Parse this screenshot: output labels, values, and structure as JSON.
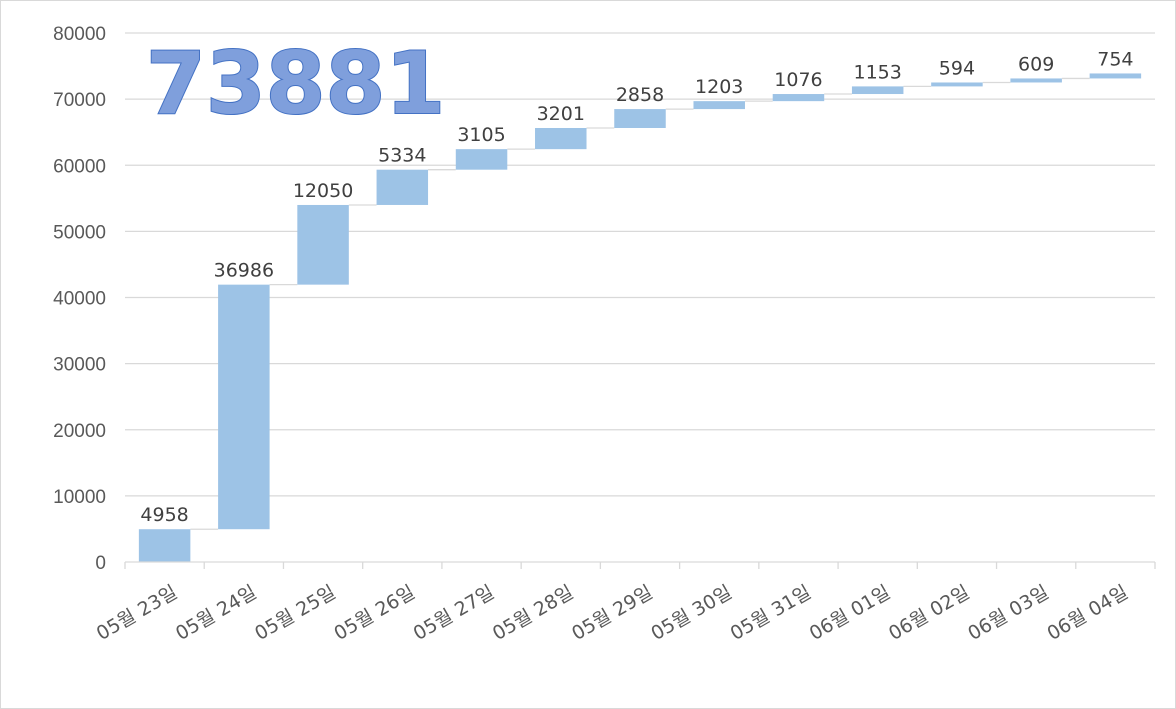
{
  "total_badge": "73881",
  "chart_data": {
    "type": "waterfall",
    "categories": [
      "05월 23일",
      "05월 24일",
      "05월 25일",
      "05월 26일",
      "05월 27일",
      "05월 28일",
      "05월 29일",
      "05월 30일",
      "05월 31일",
      "06월 01일",
      "06월 02일",
      "06월 03일",
      "06월 04일"
    ],
    "values": [
      4958,
      36986,
      12050,
      5334,
      3105,
      3201,
      2858,
      1203,
      1076,
      1153,
      594,
      609,
      754
    ],
    "ylim": [
      0,
      80000
    ],
    "yticks": [
      0,
      10000,
      20000,
      30000,
      40000,
      50000,
      60000,
      70000,
      80000
    ],
    "grid": true,
    "bar_color": "#9dc3e6",
    "connector_color": "#d9d9d9"
  }
}
